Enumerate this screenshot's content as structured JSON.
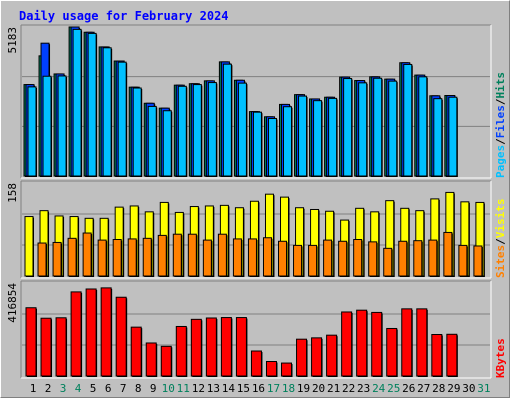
{
  "page": {
    "title": "Daily usage for February 2024"
  },
  "chart_data": {
    "title": "Daily usage for February 2024",
    "type": "bar",
    "categories": [
      "1",
      "2",
      "3",
      "4",
      "5",
      "6",
      "7",
      "8",
      "9",
      "10",
      "11",
      "12",
      "13",
      "14",
      "15",
      "16",
      "17",
      "18",
      "19",
      "20",
      "21",
      "22",
      "23",
      "24",
      "25",
      "26",
      "27",
      "28",
      "29",
      "30",
      "31"
    ],
    "weekend_days": [
      "3",
      "4",
      "10",
      "11",
      "17",
      "18",
      "24",
      "25",
      "31"
    ],
    "colors": {
      "background": "#c0c0c0",
      "plot_bg": "#c0c0c0",
      "title": "#0000ff",
      "hits": "#00805c",
      "files": "#0040ff",
      "pages": "#00c0ff",
      "visits": "#ffff00",
      "sites": "#ff8000",
      "kbytes": "#ff0000",
      "weekday_label": "#000000",
      "weekend_label": "#00805c"
    },
    "panels": [
      {
        "name": "requests",
        "ymax_label": "5183",
        "ymax": 5183,
        "right_labels": [
          {
            "text": "Pages",
            "color": "#00c0ff"
          },
          {
            "text": "/",
            "color": "#000000"
          },
          {
            "text": "Files",
            "color": "#0040ff"
          },
          {
            "text": "/",
            "color": "#000000"
          },
          {
            "text": "Hits",
            "color": "#00805c"
          }
        ],
        "series": [
          {
            "name": "Hits",
            "values": [
              3180,
              4180,
              3550,
              5183,
              5000,
              4490,
              4000,
              3090,
              2530,
              2360,
              3160,
              3210,
              3310,
              3970,
              3330,
              2240,
              2060,
              2490,
              2830,
              2680,
              2740,
              3440,
              3320,
              3450,
              3370,
              3940,
              3510,
              2790,
              2800,
              0,
              0
            ]
          },
          {
            "name": "Files",
            "values": [
              3180,
              4620,
              3550,
              5183,
              5000,
              4490,
              4000,
              3090,
              2530,
              2360,
              3160,
              3210,
              3310,
              3970,
              3330,
              2240,
              2060,
              2490,
              2830,
              2680,
              2740,
              3440,
              3320,
              3450,
              3370,
              3940,
              3510,
              2790,
              2800,
              0,
              0
            ]
          },
          {
            "name": "Pages",
            "values": [
              3100,
              3470,
              3480,
              5100,
              4960,
              4460,
              3960,
              3060,
              2420,
              2270,
              3120,
              3180,
              3250,
              3890,
              3230,
              2220,
              2000,
              2410,
              2780,
              2620,
              2700,
              3390,
              3240,
              3400,
              3300,
              3880,
              3450,
              2690,
              2740,
              0,
              0
            ]
          }
        ]
      },
      {
        "name": "visits",
        "ymax_label": "158",
        "ymax": 158,
        "right_labels": [
          {
            "text": "Sites",
            "color": "#ff8000"
          },
          {
            "text": "/",
            "color": "#000000"
          },
          {
            "text": "Visits",
            "color": "#ffff00"
          }
        ],
        "series": [
          {
            "name": "Visits",
            "values": [
              101,
              111,
              102,
              101,
              98,
              98,
              117,
              119,
              109,
              125,
              108,
              118,
              119,
              120,
              116,
              127,
              139,
              134,
              116,
              113,
              110,
              95,
              115,
              109,
              128,
              115,
              111,
              131,
              142,
              126,
              125
            ]
          },
          {
            "name": "Sites",
            "values": [
              0,
              56,
              57,
              64,
              73,
              61,
              62,
              63,
              64,
              69,
              71,
              71,
              61,
              71,
              63,
              63,
              65,
              59,
              52,
              52,
              61,
              59,
              62,
              58,
              47,
              59,
              60,
              61,
              74,
              52,
              51
            ]
          }
        ]
      },
      {
        "name": "kbytes",
        "ymax_label": "416854",
        "ymax": 416854,
        "right_labels": [
          {
            "text": "KBytes",
            "color": "#ff0000"
          }
        ],
        "series": [
          {
            "name": "KBytes",
            "values": [
              306000,
              259000,
              261000,
              377000,
              390000,
              395000,
              353000,
              219000,
              148000,
              133000,
              222000,
              254000,
              260000,
              262000,
              262000,
              112000,
              65000,
              58000,
              165000,
              171000,
              183000,
              287000,
              295000,
              285000,
              213000,
              301000,
              301000,
              186000,
              187000,
              0,
              0
            ]
          }
        ]
      }
    ]
  }
}
